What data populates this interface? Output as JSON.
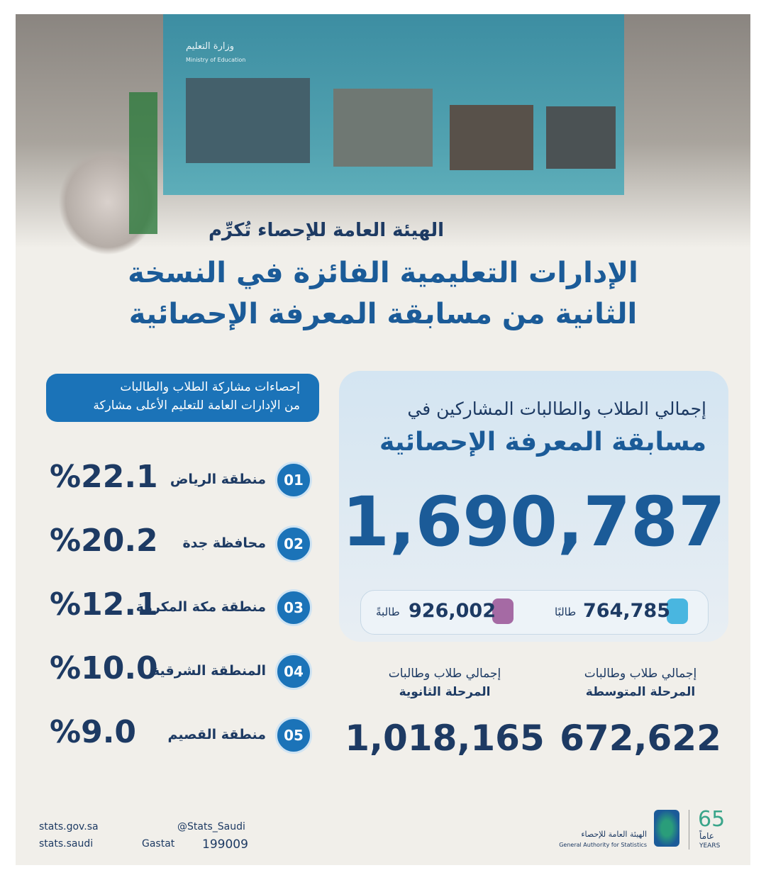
{
  "photo": {
    "ministry_ar": "وزارة التعليم",
    "ministry_en": "Ministry of Education"
  },
  "header": {
    "subtitle": "الهيئة العامة للإحصاء تُكرِّم",
    "title_lines": [
      "الإدارات التعليمية الفائزة في النسخة",
      "الثانية من مسابقة المعرفة الإحصائية"
    ]
  },
  "total": {
    "heading_lines": [
      "إجمالي الطلاب والطالبات المشاركين في",
      "مسابقة المعرفة الإحصائية"
    ],
    "value": "1,690,787",
    "male": {
      "value": "764,785",
      "label": "طالبًا"
    },
    "female": {
      "value": "926,002",
      "label": "طالبةً"
    }
  },
  "stages": [
    {
      "label_lines": [
        "إجمالي طلاب وطالبات",
        "المرحلة المتوسطة"
      ],
      "value": "672,622"
    },
    {
      "label_lines": [
        "إجمالي طلاب وطالبات",
        "المرحلة الثانوية"
      ],
      "value": "1,018,165"
    }
  ],
  "ranking": {
    "heading_lines": [
      "إحصاءات مشاركة الطلاب والطالبات",
      "من الإدارات العامة للتعليم الأعلى مشاركة"
    ],
    "items": [
      {
        "rank": "01",
        "name": "منطقة الرياض",
        "share": "%22.1"
      },
      {
        "rank": "02",
        "name": "محافظة جدة",
        "share": "%20.2"
      },
      {
        "rank": "03",
        "name": "منطقة مكة المكرمة",
        "share": "%12.1"
      },
      {
        "rank": "04",
        "name": "المنطقة الشرقية",
        "share": "%10.0"
      },
      {
        "rank": "05",
        "name": "منطقة القصيم",
        "share": "%9.0"
      }
    ]
  },
  "footer": {
    "twitter": "@Stats_Saudi",
    "website": "stats.gov.sa",
    "social": "stats.saudi",
    "linkedin": "Gastat",
    "phone": "199009",
    "org_ar": "الهيئة العامة للإحصاء",
    "org_en": "General Authority for Statistics",
    "anniversary": "65",
    "anniversary_ar": "عاماً",
    "anniversary_en": "YEARS"
  }
}
